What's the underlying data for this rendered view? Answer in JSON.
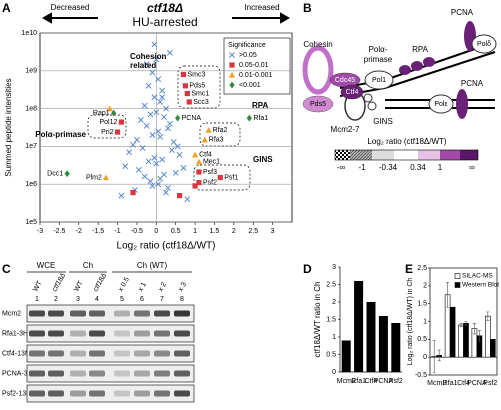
{
  "chart_data": [
    {
      "type": "scatter",
      "panel": "A",
      "title": "ctf18Δ",
      "subtitle": "HU-arrested",
      "decreased": "Decreased",
      "increased": "Increased",
      "xlabel": "Log₂ ratio (ctf18Δ/WT)",
      "ylabel": "Summed peptide intensities",
      "xlim": [
        -3,
        3.5
      ],
      "ylim": [
        100000,
        10000000000
      ],
      "log_y": true,
      "xticks": [
        -3,
        -2.5,
        -2,
        -1.5,
        -1,
        -0.5,
        0,
        0.5,
        1,
        1.5,
        2,
        2.5,
        3
      ],
      "yticks": [
        {
          "value": 100000,
          "label": "1e5"
        },
        {
          "value": 1000000,
          "label": "1e6"
        },
        {
          "value": 10000000,
          "label": "1e7"
        },
        {
          "value": 100000000,
          "label": "1e8"
        },
        {
          "value": 1000000000,
          "label": "1e9"
        },
        {
          "value": 10000000000,
          "label": "1e10"
        }
      ],
      "grid": true,
      "reference_x": 0,
      "legend_title": "Significance",
      "legend": "upper right",
      "series": [
        {
          "name": ">0.05",
          "color": "#4a7fd0",
          "marker": "x",
          "x": [
            -0.1,
            0.05,
            -0.2,
            0.15,
            -0.05,
            0.1,
            -0.3,
            0.25,
            0.0,
            -0.15,
            0.2,
            -0.4,
            0.35,
            -0.25,
            0.3,
            0.05,
            -0.1,
            0.1,
            -0.5,
            0.45,
            -0.6,
            0.55,
            -0.35,
            0.4,
            -0.7,
            0.6,
            -0.05,
            0.15,
            -0.2,
            0.0,
            -0.8,
            0.7,
            -0.45,
            0.5,
            0.2,
            -0.3,
            0.1,
            -0.15,
            0.05,
            -0.1,
            0.3,
            -0.55,
            0.25,
            -0.9,
            0.8,
            0.0,
            -0.25,
            0.35,
            -0.05,
            0.15
          ],
          "y": [
            900000000.0,
            600000000.0,
            400000000.0,
            300000000.0,
            200000000.0,
            150000000.0,
            120000000.0,
            100000000.0,
            80000000.0,
            70000000.0,
            60000000.0,
            50000000.0,
            40000000.0,
            35000000.0,
            30000000.0,
            25000000.0,
            20000000.0,
            18000000.0,
            15000000.0,
            13000000.0,
            11000000.0,
            10000000.0,
            9000000.0,
            8000000.0,
            7000000.0,
            6000000.0,
            5000000.0,
            4500000.0,
            4000000.0,
            3500000.0,
            3000000.0,
            2700000.0,
            2400000.0,
            2000000.0,
            1800000.0,
            1600000.0,
            1400000.0,
            1200000.0,
            1000000.0,
            900000.0,
            800000.0,
            700000.0,
            600000.0,
            500000.0,
            400000.0,
            2000000000.0,
            1500000000.0,
            3000000000.0,
            5000000000.0,
            200000000.0
          ]
        },
        {
          "name": "0.05-0.01",
          "color": "#d9363e",
          "marker": "square",
          "x": [
            0.7,
            0.75,
            0.8,
            0.85,
            -0.9,
            -1.0,
            1.1,
            1.65,
            1.1,
            -0.6,
            0.6,
            1.0
          ],
          "y": [
            800000000.0,
            400000000.0,
            250000000.0,
            150000000.0,
            44000000.0,
            24000000.0,
            2100000.0,
            1500000.0,
            1100000.0,
            600000.0,
            500000.0,
            900000.0
          ],
          "labels": [
            "Smc3",
            "Pds5",
            "Smc1",
            "Scc3",
            "Pol12",
            "Pri2",
            "Psf3",
            "Psf1",
            "Psf2",
            null,
            null,
            null
          ]
        },
        {
          "name": "0.01-0.001",
          "color": "#f0a020",
          "marker": "triangle",
          "x": [
            1.35,
            1.25,
            1.0,
            1.1,
            -1.3,
            -1.2
          ],
          "y": [
            27000000.0,
            15000000.0,
            6000000.0,
            3900000.0,
            1500000.0,
            100000000.0
          ],
          "labels": [
            "Rfa2",
            "Rfa3",
            "Ctf4",
            "Mec1",
            "Plm2",
            null
          ]
        },
        {
          "name": "<0.001",
          "color": "#2f8a3a",
          "marker": "diamond",
          "x": [
            0.55,
            2.4,
            -1.1,
            -2.3
          ],
          "y": [
            56000000.0,
            56000000.0,
            76000000.0,
            1900000.0
          ],
          "labels": [
            "PCNA",
            "Rfa1",
            "Rap1",
            "Dcc1"
          ]
        }
      ],
      "annotations": [
        [
          "Cohesion",
          "related"
        ],
        [
          "RPA"
        ],
        [
          "Polα-primase"
        ],
        [
          "GINS"
        ]
      ]
    },
    {
      "type": "bar",
      "panel": "D",
      "ylabel": "ctf18Δ/WT ratio in Ch",
      "categories": [
        "Mcm2",
        "Rfa1",
        "Ctf4",
        "PCNA",
        "Psf2"
      ],
      "values": [
        0.9,
        2.6,
        2.0,
        1.6,
        1.4
      ],
      "color": "#000000",
      "ylim": [
        0,
        3
      ],
      "yticks": [
        0,
        0.5,
        1,
        1.5,
        2,
        2.5,
        3
      ]
    },
    {
      "type": "grouped_bar",
      "panel": "E",
      "ylabel": "Log₂ ratio (ctf18Δ/WT) in Ch",
      "categories": [
        "Mcm2",
        "Rfa1",
        "Ctf4",
        "PCNA",
        "Psf2"
      ],
      "series": [
        {
          "name": "SILAC-MS",
          "color": "#ffffff",
          "values": [
            0.02,
            1.75,
            0.9,
            0.8,
            1.15
          ],
          "error": [
            0.45,
            0.35,
            0.05,
            0.15,
            0.12
          ]
        },
        {
          "name": "Western Blot",
          "color": "#000000",
          "values": [
            0.05,
            1.4,
            0.95,
            0.6,
            0.5
          ],
          "error": [
            0.15,
            null,
            0.05,
            0.15,
            null
          ]
        }
      ],
      "ylim": [
        -0.5,
        2.5
      ],
      "yticks": [
        -0.5,
        0,
        0.5,
        1,
        1.5,
        2,
        2.5
      ],
      "legend": "upper right"
    }
  ],
  "diagram": {
    "panel": "B",
    "labels": {
      "cohesin": "Cohesin",
      "cdc45": "Cdc45",
      "ctf4": "Ctf4",
      "pds5": "Pds5",
      "pol_alpha": [
        "Polα-",
        "primase"
      ],
      "pol1": "Pol1",
      "rpa": "RPA",
      "pcna_top": "PCNA",
      "pol_delta": "Polδ",
      "gins": "GINS",
      "mcm": "Mcm2-7",
      "pol_epsilon": "Polε",
      "pcna_bottom": "PCNA"
    },
    "scale_title": "Log₂ ratio (ctf18Δ/WT)",
    "scale_labels": [
      "-∞",
      "-1",
      "-0.34",
      "0.34",
      "1",
      "∞"
    ]
  },
  "blot": {
    "panel": "C",
    "headers": [
      "WCE",
      "Ch",
      "Ch (WT)"
    ],
    "lanes": [
      "WT",
      "ctf18Δ",
      "WT",
      "ctf18Δ",
      "x 0.5",
      "x 1",
      "x 2",
      "x 3"
    ],
    "lane_numbers": [
      1,
      2,
      3,
      4,
      5,
      6,
      7,
      8
    ],
    "rows": [
      "Mcm2",
      "Rfa1-3HA",
      "Ctf4-13Myc",
      "PCNA-3Myc",
      "Psf2-13Myc"
    ]
  }
}
